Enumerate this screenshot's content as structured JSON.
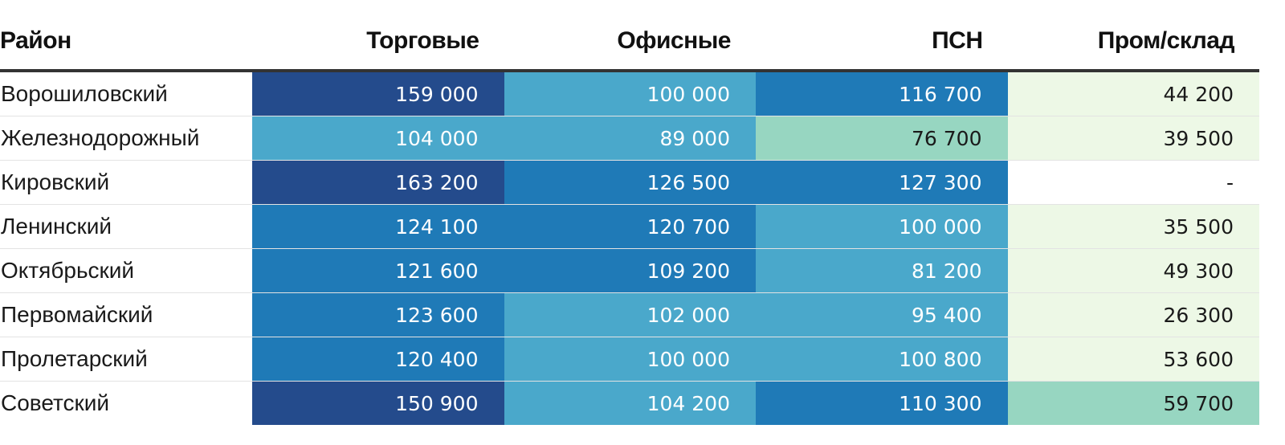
{
  "table": {
    "headers": [
      "Район",
      "Торговые",
      "Офисные",
      "ПСН",
      "Пром/склад"
    ],
    "rows": [
      {
        "district": "Ворошиловский",
        "values": [
          "159 000",
          "100 000",
          "116 700",
          "44 200"
        ]
      },
      {
        "district": "Железнодорожный",
        "values": [
          "104 000",
          "89 000",
          "76 700",
          "39 500"
        ]
      },
      {
        "district": "Кировский",
        "values": [
          "163 200",
          "126 500",
          "127 300",
          "-"
        ]
      },
      {
        "district": "Ленинский",
        "values": [
          "124 100",
          "120 700",
          "100 000",
          "35 500"
        ]
      },
      {
        "district": "Октябрьский",
        "values": [
          "121 600",
          "109 200",
          "81 200",
          "49 300"
        ]
      },
      {
        "district": "Первомайский",
        "values": [
          "123 600",
          "102 000",
          "95 400",
          "26 300"
        ]
      },
      {
        "district": "Пролетарский",
        "values": [
          "120 400",
          "100 000",
          "100 800",
          "53 600"
        ]
      },
      {
        "district": "Советский",
        "values": [
          "150 900",
          "104 200",
          "110 300",
          "59 700"
        ]
      }
    ],
    "color_bins": [
      [
        1,
        3,
        2,
        5
      ],
      [
        3,
        3,
        4,
        5
      ],
      [
        1,
        2,
        2,
        0
      ],
      [
        2,
        2,
        3,
        5
      ],
      [
        2,
        2,
        3,
        5
      ],
      [
        2,
        3,
        3,
        5
      ],
      [
        2,
        3,
        3,
        5
      ],
      [
        1,
        3,
        2,
        4
      ]
    ],
    "palette": {
      "1": "#244b8c",
      "2": "#1f7ab7",
      "3": "#4aa8cb",
      "4": "#97d6c1",
      "5": "#edf8e6",
      "0": "#ffffff"
    }
  }
}
